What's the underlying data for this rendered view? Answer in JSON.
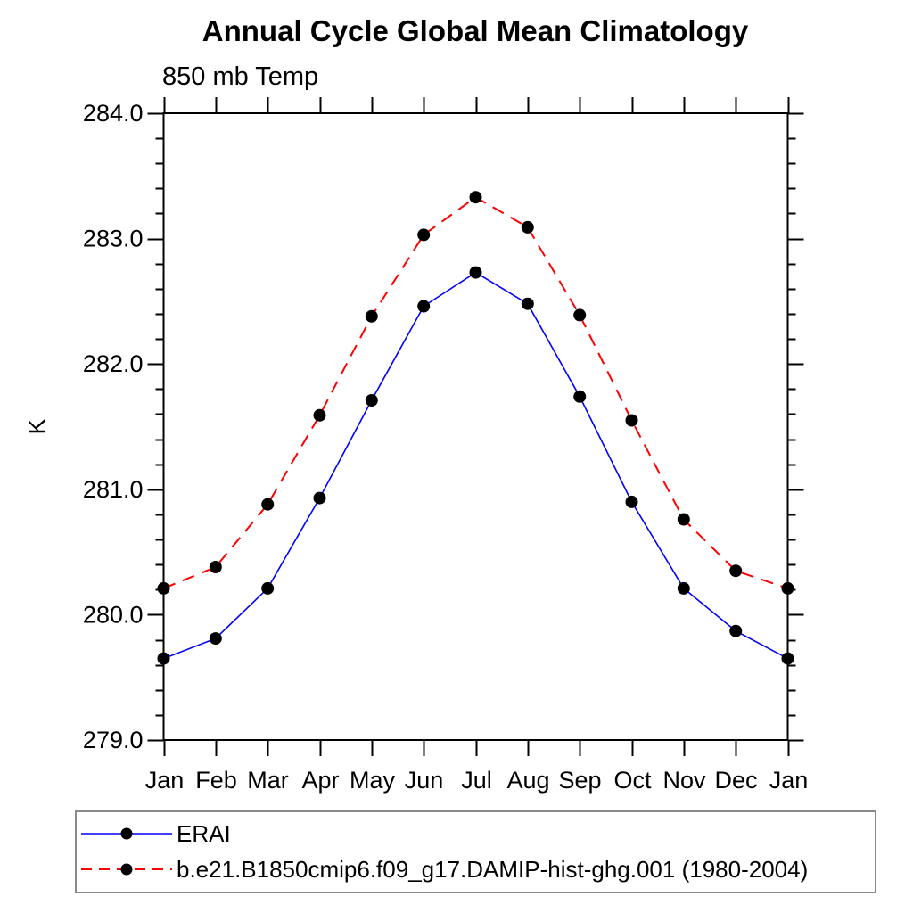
{
  "title": "Annual Cycle Global Mean Climatology",
  "subtitle": "850 mb Temp",
  "ylabel": "K",
  "chart_data": {
    "type": "line",
    "categories": [
      "Jan",
      "Feb",
      "Mar",
      "Apr",
      "May",
      "Jun",
      "Jul",
      "Aug",
      "Sep",
      "Oct",
      "Nov",
      "Dec",
      "Jan"
    ],
    "series": [
      {
        "name": "ERAI",
        "color": "#0000ff",
        "line_style": "solid",
        "marker": "filled-circle",
        "marker_color": "#000000",
        "values": [
          279.65,
          279.81,
          280.21,
          280.93,
          281.71,
          282.46,
          282.73,
          282.48,
          281.74,
          280.9,
          280.21,
          279.87,
          279.65
        ]
      },
      {
        "name": "b.e21.B1850cmip6.f09_g17.DAMIP-hist-ghg.001 (1980-2004)",
        "color": "#ff0000",
        "line_style": "dashed",
        "marker": "filled-circle",
        "marker_color": "#000000",
        "values": [
          280.21,
          280.38,
          280.88,
          281.59,
          282.38,
          283.03,
          283.33,
          283.09,
          282.39,
          281.55,
          280.76,
          280.35,
          280.21
        ]
      }
    ],
    "ylim": [
      279.0,
      284.0
    ],
    "ytick_major_step": 1.0,
    "ytick_minor_step": 0.2,
    "ytick_labels": [
      "284.0",
      "283.0",
      "282.0",
      "281.0",
      "280.0",
      "279.0"
    ],
    "xlabel": "",
    "grid": false,
    "legend_position": "bottom",
    "axis_color": "#000000",
    "background_color": "#ffffff"
  }
}
